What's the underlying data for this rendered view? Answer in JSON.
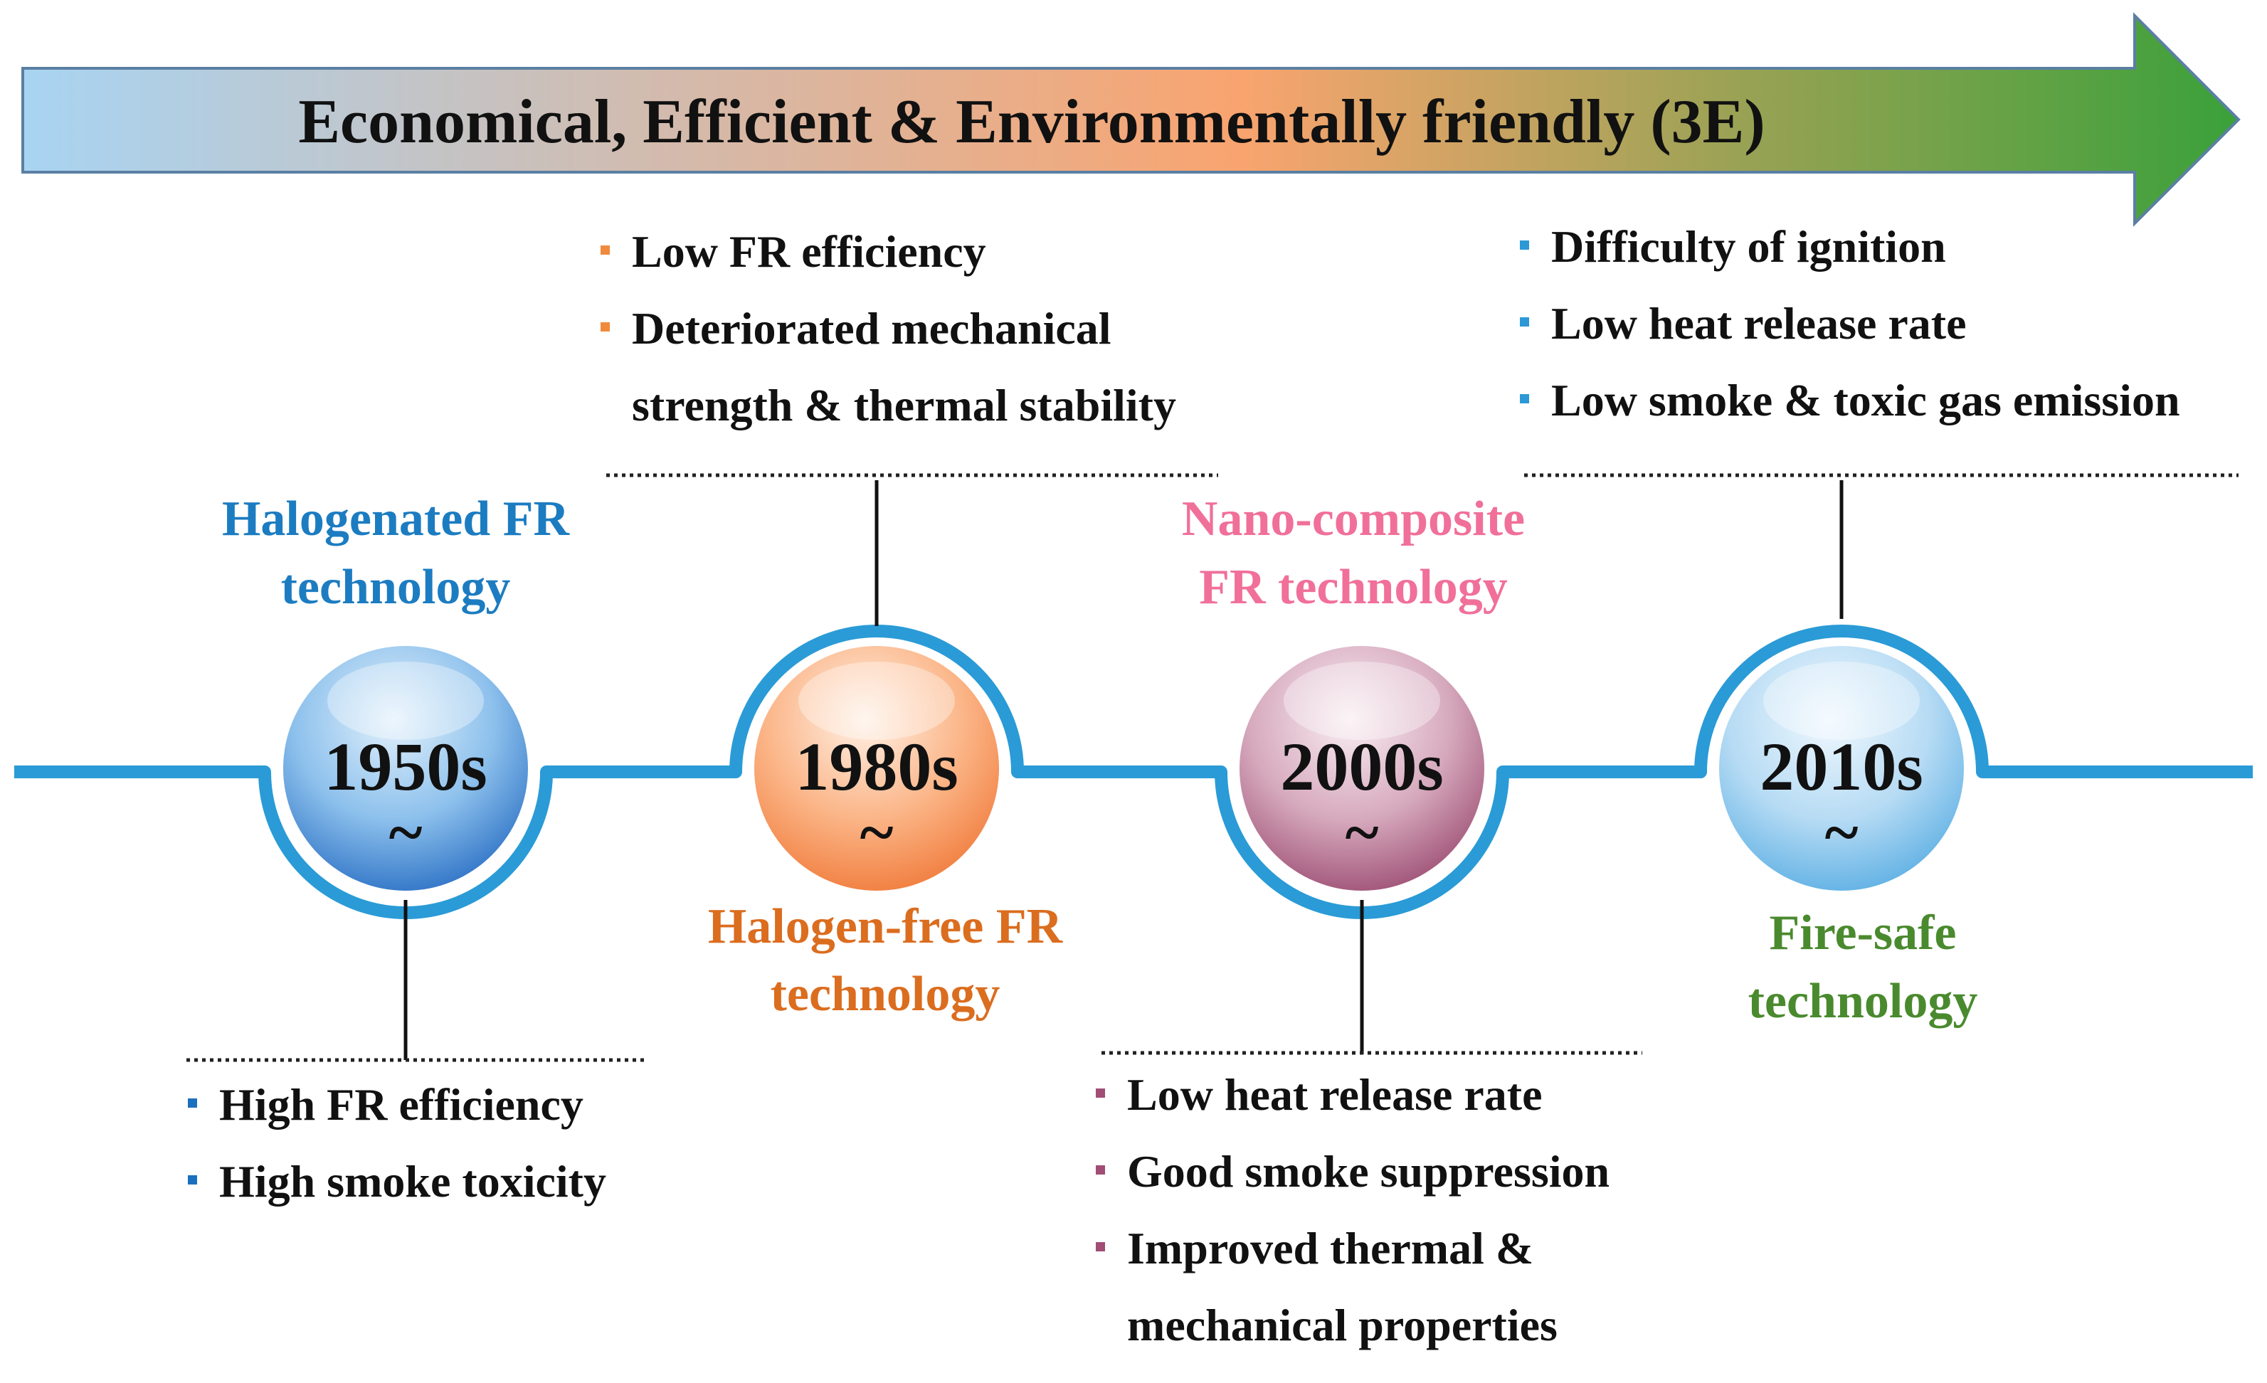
{
  "banner": {
    "text": "Economical, Efficient & Environmentally friendly (3E)",
    "colors": [
      "#a8d4f2",
      "#f9a46f",
      "#3aa13a"
    ]
  },
  "timeline_color": "#2a9bd6",
  "eras": [
    {
      "year": "1950s",
      "tilde": "~",
      "label_lines": [
        "Halogenated FR",
        "technology"
      ],
      "label_color": "#1c7cc1",
      "circle_colors": [
        "#e3f1fc",
        "#8cc0ec",
        "#2a6fc4"
      ],
      "bullet_color": "#1a6fbf",
      "bullets": [
        [
          "High FR efficiency"
        ],
        [
          "High smoke toxicity"
        ]
      ]
    },
    {
      "year": "1980s",
      "tilde": "~",
      "label_lines": [
        "Halogen-free FR",
        "technology"
      ],
      "label_color": "#db6d1f",
      "circle_colors": [
        "#fff1e6",
        "#fbb486",
        "#f07a3a"
      ],
      "bullet_color": "#f08a3c",
      "bullets": [
        [
          "Low FR efficiency"
        ],
        [
          "Deteriorated mechanical",
          "strength & thermal stability"
        ]
      ]
    },
    {
      "year": "2000s",
      "tilde": "~",
      "label_lines": [
        "Nano-composite",
        "FR technology"
      ],
      "label_color": "#f0709a",
      "circle_colors": [
        "#f9eef2",
        "#d6a9bd",
        "#9c4d72"
      ],
      "bullet_color": "#a14d75",
      "bullets": [
        [
          "Low heat release rate"
        ],
        [
          "Good smoke suppression"
        ],
        [
          "Improved thermal &",
          "mechanical properties"
        ]
      ]
    },
    {
      "year": "2010s",
      "tilde": "~",
      "label_lines": [
        "Fire-safe",
        "technology"
      ],
      "label_color": "#4a8a2e",
      "circle_colors": [
        "#f0f8fe",
        "#b6dbf4",
        "#5aaee3"
      ],
      "bullet_color": "#2c98d6",
      "bullets": [
        [
          "Difficulty of ignition"
        ],
        [
          "Low heat release rate"
        ],
        [
          "Low smoke & toxic gas emission"
        ]
      ]
    }
  ]
}
